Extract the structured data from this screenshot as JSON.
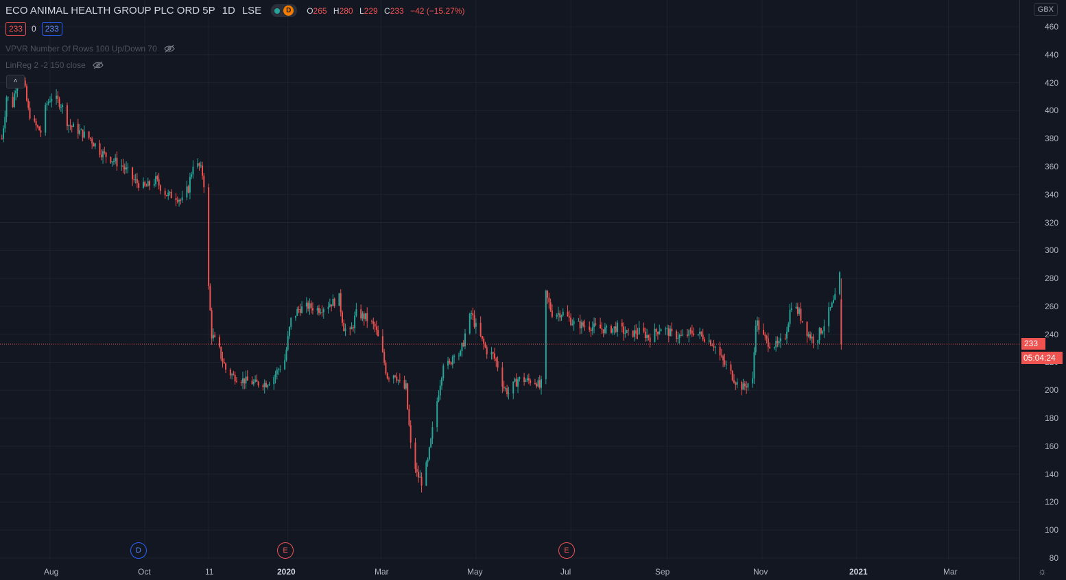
{
  "header": {
    "title": "ECO ANIMAL HEALTH GROUP PLC ORD 5P",
    "interval": "1D",
    "exchange": "LSE",
    "badge_letter": "D",
    "ohlc": {
      "o_label": "O",
      "o_value": "265",
      "h_label": "H",
      "h_value": "280",
      "l_label": "L",
      "l_value": "229",
      "c_label": "C",
      "c_value": "233",
      "change": "−42 (−15.27%)"
    }
  },
  "quote_boxes": {
    "bid": "233",
    "spread": "0",
    "ask": "233"
  },
  "indicators": [
    {
      "label": "VPVR Number Of Rows 100 Up/Down 70"
    },
    {
      "label": "LinReg 2 -2 150 close"
    }
  ],
  "collapse_glyph": "˄",
  "price_axis": {
    "currency": "GBX",
    "ticks": [
      "460",
      "440",
      "420",
      "400",
      "380",
      "360",
      "340",
      "320",
      "300",
      "280",
      "260",
      "240",
      "220",
      "200",
      "180",
      "160",
      "140",
      "120",
      "100",
      "80"
    ],
    "current_price": "233",
    "countdown": "05:04:24"
  },
  "time_axis": {
    "labels": [
      "Aug",
      "Oct",
      "11",
      "2020",
      "Mar",
      "May",
      "Jul",
      "Sep",
      "Nov",
      "2021",
      "Mar"
    ]
  },
  "events": [
    {
      "letter": "D",
      "kind": "dividend"
    },
    {
      "letter": "E",
      "kind": "earnings"
    },
    {
      "letter": "E",
      "kind": "earnings"
    }
  ],
  "colors": {
    "background": "#131722",
    "up": "#26a69a",
    "down": "#ef5350",
    "grid": "#1e222d",
    "accent_blue": "#2962ff"
  },
  "chart_data": {
    "type": "candlestick",
    "y_unit": "GBX",
    "ylim": [
      80,
      470
    ],
    "xlim": [
      "2019-07-01",
      "2021-04-25"
    ],
    "price_ticks": [
      80,
      100,
      120,
      140,
      160,
      180,
      200,
      220,
      240,
      260,
      280,
      300,
      320,
      340,
      360,
      380,
      400,
      420,
      440,
      460
    ],
    "last_close": 233,
    "series": [
      {
        "name": "ECO ANIMAL HEALTH GROUP PLC ORD 5P",
        "anchors": [
          [
            "2019-07-01",
            380
          ],
          [
            "2019-07-04",
            410
          ],
          [
            "2019-07-08",
            405
          ],
          [
            "2019-07-11",
            425
          ],
          [
            "2019-07-15",
            420
          ],
          [
            "2019-07-18",
            400
          ],
          [
            "2019-07-22",
            390
          ],
          [
            "2019-07-26",
            385
          ],
          [
            "2019-07-30",
            405
          ],
          [
            "2019-08-02",
            410
          ],
          [
            "2019-08-08",
            405
          ],
          [
            "2019-08-13",
            390
          ],
          [
            "2019-08-20",
            385
          ],
          [
            "2019-08-27",
            380
          ],
          [
            "2019-09-03",
            370
          ],
          [
            "2019-09-10",
            365
          ],
          [
            "2019-09-17",
            360
          ],
          [
            "2019-09-24",
            350
          ],
          [
            "2019-10-01",
            345
          ],
          [
            "2019-10-08",
            350
          ],
          [
            "2019-10-15",
            340
          ],
          [
            "2019-10-22",
            338
          ],
          [
            "2019-10-25",
            335
          ],
          [
            "2019-10-29",
            345
          ],
          [
            "2019-11-01",
            362
          ],
          [
            "2019-11-05",
            360
          ],
          [
            "2019-11-08",
            352
          ],
          [
            "2019-11-11",
            272
          ],
          [
            "2019-11-13",
            240
          ],
          [
            "2019-11-18",
            228
          ],
          [
            "2019-11-22",
            215
          ],
          [
            "2019-11-27",
            210
          ],
          [
            "2019-12-04",
            207
          ],
          [
            "2019-12-11",
            205
          ],
          [
            "2019-12-18",
            205
          ],
          [
            "2019-12-23",
            210
          ],
          [
            "2019-12-30",
            222
          ],
          [
            "2020-01-03",
            250
          ],
          [
            "2020-01-08",
            258
          ],
          [
            "2020-01-14",
            260
          ],
          [
            "2020-01-21",
            258
          ],
          [
            "2020-01-28",
            262
          ],
          [
            "2020-02-03",
            265
          ],
          [
            "2020-02-06",
            245
          ],
          [
            "2020-02-10",
            240
          ],
          [
            "2020-02-14",
            255
          ],
          [
            "2020-02-20",
            252
          ],
          [
            "2020-02-26",
            245
          ],
          [
            "2020-03-02",
            225
          ],
          [
            "2020-03-05",
            210
          ],
          [
            "2020-03-10",
            212
          ],
          [
            "2020-03-13",
            205
          ],
          [
            "2020-03-17",
            200
          ],
          [
            "2020-03-20",
            160
          ],
          [
            "2020-03-24",
            140
          ],
          [
            "2020-03-27",
            135
          ],
          [
            "2020-03-31",
            148
          ],
          [
            "2020-04-03",
            170
          ],
          [
            "2020-04-07",
            200
          ],
          [
            "2020-04-10",
            220
          ],
          [
            "2020-04-14",
            218
          ],
          [
            "2020-04-17",
            228
          ],
          [
            "2020-04-21",
            225
          ],
          [
            "2020-04-24",
            240
          ],
          [
            "2020-04-28",
            255
          ],
          [
            "2020-05-01",
            245
          ],
          [
            "2020-05-05",
            235
          ],
          [
            "2020-05-08",
            228
          ],
          [
            "2020-05-12",
            225
          ],
          [
            "2020-05-15",
            218
          ],
          [
            "2020-05-19",
            202
          ],
          [
            "2020-05-22",
            198
          ],
          [
            "2020-05-28",
            208
          ],
          [
            "2020-06-03",
            207
          ],
          [
            "2020-06-09",
            206
          ],
          [
            "2020-06-12",
            200
          ],
          [
            "2020-06-15",
            268
          ],
          [
            "2020-06-19",
            255
          ],
          [
            "2020-06-26",
            255
          ],
          [
            "2020-07-03",
            248
          ],
          [
            "2020-07-10",
            246
          ],
          [
            "2020-07-17",
            245
          ],
          [
            "2020-07-24",
            243
          ],
          [
            "2020-07-31",
            245
          ],
          [
            "2020-08-07",
            240
          ],
          [
            "2020-08-14",
            242
          ],
          [
            "2020-08-21",
            238
          ],
          [
            "2020-08-28",
            245
          ],
          [
            "2020-09-04",
            240
          ],
          [
            "2020-09-11",
            238
          ],
          [
            "2020-09-18",
            242
          ],
          [
            "2020-09-25",
            238
          ],
          [
            "2020-10-01",
            233
          ],
          [
            "2020-10-06",
            222
          ],
          [
            "2020-10-12",
            212
          ],
          [
            "2020-10-16",
            205
          ],
          [
            "2020-10-20",
            202
          ],
          [
            "2020-10-23",
            205
          ],
          [
            "2020-10-26",
            205
          ],
          [
            "2020-10-28",
            250
          ],
          [
            "2020-11-02",
            238
          ],
          [
            "2020-11-06",
            233
          ],
          [
            "2020-11-12",
            232
          ],
          [
            "2020-11-16",
            240
          ],
          [
            "2020-11-20",
            262
          ],
          [
            "2020-11-25",
            255
          ],
          [
            "2020-12-01",
            240
          ],
          [
            "2020-12-05",
            235
          ],
          [
            "2020-12-10",
            245
          ],
          [
            "2020-12-15",
            258
          ],
          [
            "2020-12-18",
            265
          ],
          [
            "2020-12-21",
            280
          ],
          [
            "2020-12-22",
            233
          ]
        ]
      }
    ]
  }
}
